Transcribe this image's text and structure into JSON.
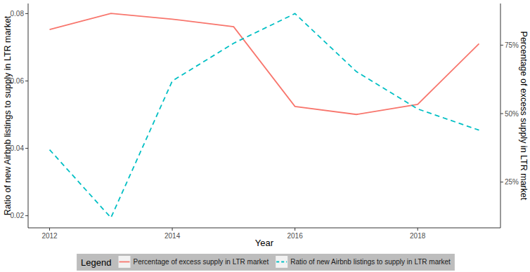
{
  "chart_data": {
    "type": "line",
    "xlabel": "Year",
    "ylabel": "Ratio of new Airbnb listings to supply in LTR market",
    "y2label": "Percentage of excess supply in LTR market",
    "legend_title": "Legend",
    "legend": "bottom",
    "grid": false,
    "x": [
      2012,
      2013,
      2014,
      2015,
      2016,
      2017,
      2018,
      2019
    ],
    "xlim": [
      2011.65,
      2019.35
    ],
    "xticks": [
      2012,
      2014,
      2016,
      2018
    ],
    "ylim": [
      0.0164,
      0.083
    ],
    "yticks": [
      0.02,
      0.04,
      0.06,
      0.08
    ],
    "y2lim": [
      8.3,
      90.2
    ],
    "y2ticks": [
      {
        "value": 25,
        "label": "25%"
      },
      {
        "value": 50,
        "label": "50%"
      },
      {
        "value": 75,
        "label": "75%"
      }
    ],
    "series": [
      {
        "name": "Percentage of excess supply in LTR market",
        "color": "#F8766D",
        "line_style": "solid",
        "axis": "y2",
        "values": [
          80.7,
          86.6,
          84.5,
          81.7,
          52.6,
          49.7,
          53.4,
          75.5
        ]
      },
      {
        "name": "Ratio of new Airbnb listings to supply in LTR market",
        "color": "#00BFC4",
        "line_style": "dashed",
        "axis": "y",
        "values": [
          0.0396,
          0.0194,
          0.06,
          0.0712,
          0.08,
          0.0628,
          0.0517,
          0.0454
        ]
      }
    ]
  }
}
